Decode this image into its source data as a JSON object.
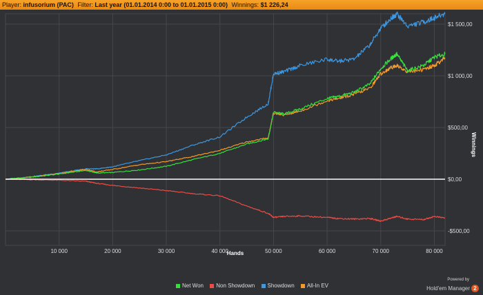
{
  "header": {
    "player_label": "Player:",
    "player_value": "infusorium (PAC)",
    "filter_label": "Filter:",
    "filter_value": "Last year (01.01.2014 0:00 to 01.01.2015 0:00)",
    "winnings_label": "Winnings:",
    "winnings_value": "$1 226,24"
  },
  "branding": {
    "powered_by": "Powered by",
    "product": "Hold'em Manager",
    "badge": "2"
  },
  "colors": {
    "background": "#2f3135",
    "grid": "#44474b",
    "zero_line": "#ffffff",
    "net_won": "#34e23a",
    "non_showdown": "#ef4a43",
    "showdown": "#3d98e3",
    "allin_ev": "#f39a2c"
  },
  "chart_data": {
    "type": "line",
    "xlabel": "Hands",
    "ylabel": "Winnings",
    "xlim": [
      0,
      82000
    ],
    "ylim": [
      -640,
      1600
    ],
    "x_ticks": [
      {
        "value": 10000,
        "label": "10 000"
      },
      {
        "value": 20000,
        "label": "20 000"
      },
      {
        "value": 30000,
        "label": "30 000"
      },
      {
        "value": 40000,
        "label": "40 000"
      },
      {
        "value": 50000,
        "label": "50 000"
      },
      {
        "value": 60000,
        "label": "60 000"
      },
      {
        "value": 70000,
        "label": "70 000"
      },
      {
        "value": 80000,
        "label": "80 000"
      }
    ],
    "y_ticks": [
      {
        "value": 1500,
        "label": "$1 500,00"
      },
      {
        "value": 1000,
        "label": "$1 000,00"
      },
      {
        "value": 500,
        "label": "$500,00"
      },
      {
        "value": 0,
        "label": "$0,00"
      },
      {
        "value": -500,
        "label": "-$500,00"
      }
    ],
    "grid": true,
    "legend_position": "bottom-center",
    "x": [
      0,
      5000,
      10000,
      15000,
      17000,
      20000,
      25000,
      30000,
      35000,
      40000,
      45000,
      49000,
      50000,
      52000,
      55000,
      60000,
      62000,
      65000,
      68000,
      70000,
      72000,
      73000,
      75000,
      78000,
      80000,
      82000
    ],
    "series": [
      {
        "name": "Net Won",
        "color": "#34e23a",
        "values": [
          0,
          20,
          50,
          85,
          60,
          65,
          90,
          125,
          190,
          250,
          340,
          390,
          650,
          630,
          680,
          780,
          800,
          840,
          920,
          1070,
          1170,
          1210,
          1050,
          1100,
          1180,
          1210
        ]
      },
      {
        "name": "Non Showdown",
        "color": "#ef4a43",
        "values": [
          0,
          -5,
          -10,
          -20,
          -40,
          -60,
          -85,
          -110,
          -140,
          -160,
          -260,
          -330,
          -370,
          -360,
          -355,
          -370,
          -380,
          -385,
          -380,
          -405,
          -375,
          -360,
          -385,
          -390,
          -360,
          -375
        ]
      },
      {
        "name": "Showdown",
        "color": "#3d98e3",
        "values": [
          0,
          25,
          60,
          100,
          100,
          120,
          180,
          235,
          330,
          410,
          600,
          730,
          1020,
          1040,
          1100,
          1160,
          1140,
          1160,
          1300,
          1460,
          1560,
          1600,
          1480,
          1520,
          1560,
          1600
        ]
      },
      {
        "name": "All-In EV",
        "color": "#f39a2c",
        "values": [
          0,
          22,
          55,
          95,
          70,
          95,
          140,
          170,
          220,
          280,
          360,
          400,
          640,
          620,
          660,
          760,
          780,
          820,
          880,
          1020,
          1080,
          1100,
          1040,
          1060,
          1100,
          1170
        ]
      }
    ]
  }
}
